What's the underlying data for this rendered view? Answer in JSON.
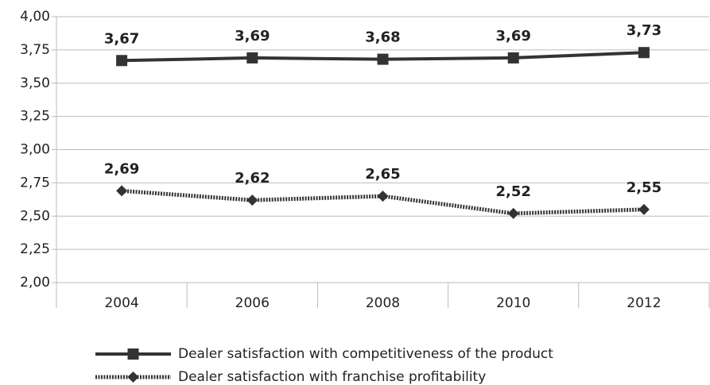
{
  "chart_data": {
    "type": "line",
    "categories": [
      "2004",
      "2006",
      "2008",
      "2010",
      "2012"
    ],
    "series": [
      {
        "name": "Dealer satisfaction with competitiveness of the product",
        "color": "#333333",
        "line_style": "solid",
        "marker": "square",
        "values": [
          3.67,
          3.69,
          3.68,
          3.69,
          3.73
        ],
        "value_labels": [
          "3,67",
          "3,69",
          "3,68",
          "3,69",
          "3,73"
        ]
      },
      {
        "name": "Dealer satisfaction with franchise profitability",
        "color": "#333333",
        "line_style": "dotted",
        "marker": "diamond",
        "values": [
          2.69,
          2.62,
          2.65,
          2.52,
          2.55
        ],
        "value_labels": [
          "2,69",
          "2,62",
          "2,65",
          "2,52",
          "2,55"
        ]
      }
    ],
    "ylim": [
      2,
      4
    ],
    "yticks": [
      {
        "value": 2,
        "label": "2,00"
      },
      {
        "value": 2.25,
        "label": "2,25"
      },
      {
        "value": 2.5,
        "label": "2,50"
      },
      {
        "value": 2.75,
        "label": "2,75"
      },
      {
        "value": 3,
        "label": "3,00"
      },
      {
        "value": 3.25,
        "label": "3,25"
      },
      {
        "value": 3.5,
        "label": "3,50"
      },
      {
        "value": 3.75,
        "label": "3,75"
      },
      {
        "value": 4,
        "label": "4,00"
      }
    ],
    "grid": true,
    "legend": "bottom"
  }
}
